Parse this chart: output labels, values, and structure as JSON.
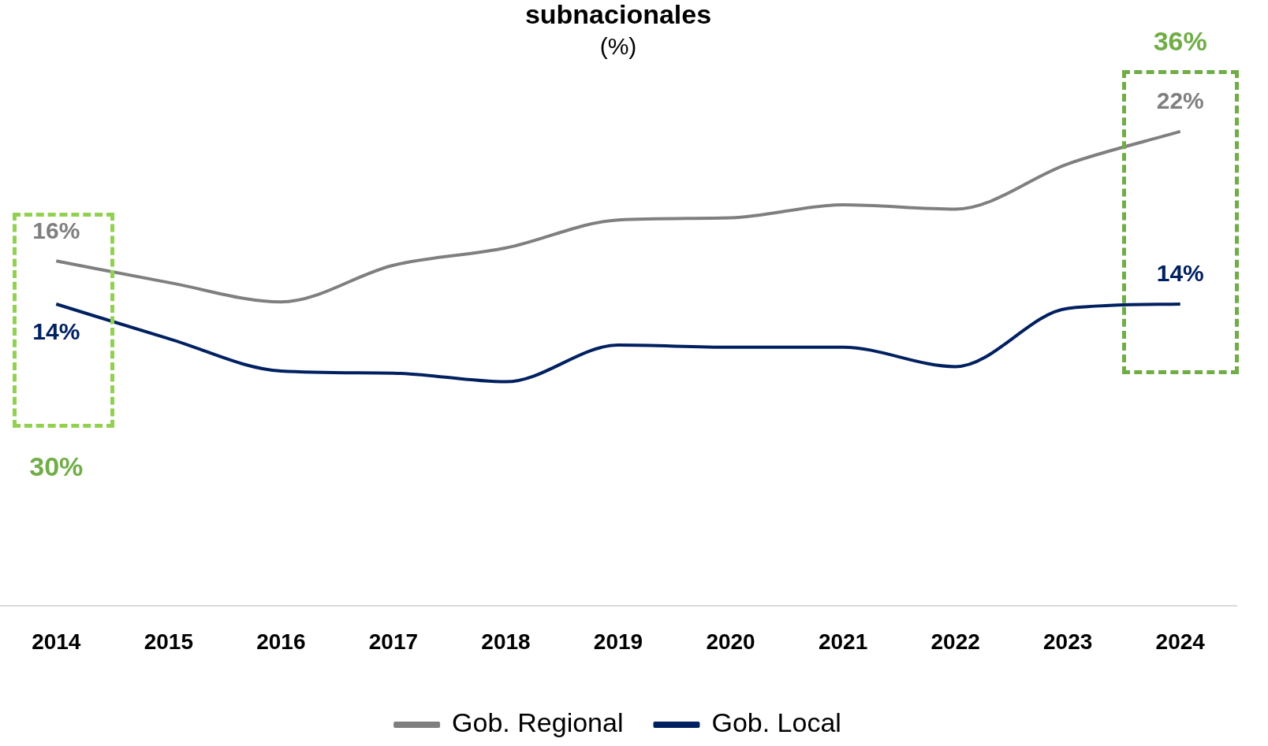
{
  "chart_data": {
    "type": "line",
    "title": "subnacionales",
    "subtitle": "(%)",
    "categories": [
      "2014",
      "2015",
      "2016",
      "2017",
      "2018",
      "2019",
      "2020",
      "2021",
      "2022",
      "2023",
      "2024"
    ],
    "series": [
      {
        "name": "Gob. Regional",
        "color": "#7f7f7f",
        "values": [
          16,
          15.0,
          14.1,
          15.8,
          16.6,
          17.9,
          18.0,
          18.6,
          18.4,
          20.5,
          22
        ],
        "value_labels": [
          "16%",
          null,
          null,
          null,
          null,
          null,
          null,
          null,
          null,
          null,
          "22%"
        ]
      },
      {
        "name": "Gob. Local",
        "color": "#002060",
        "values": [
          14,
          12.4,
          10.9,
          10.8,
          10.4,
          12.1,
          12.0,
          12.0,
          11.1,
          13.8,
          14
        ],
        "value_labels": [
          "14%",
          null,
          null,
          null,
          null,
          null,
          null,
          null,
          null,
          null,
          "14%"
        ]
      }
    ],
    "annotations": [
      "30%",
      "36%"
    ],
    "legend": "bottom",
    "grid": false,
    "marker": "none"
  }
}
